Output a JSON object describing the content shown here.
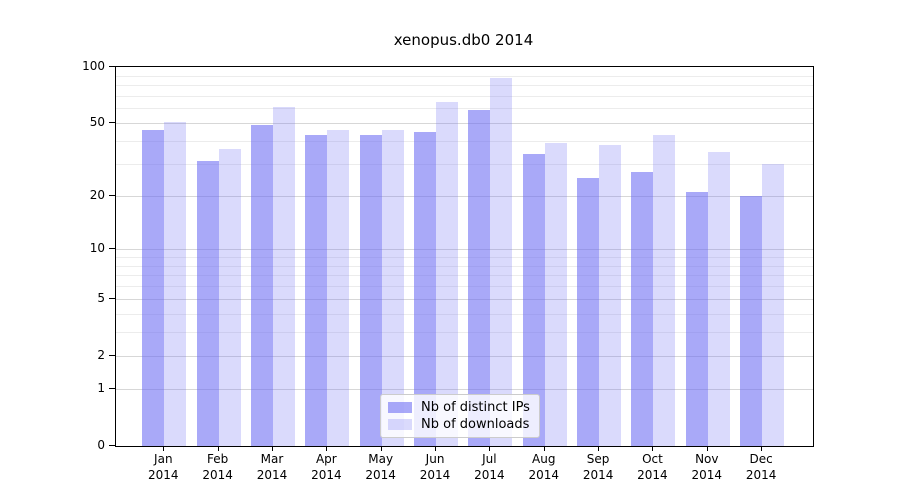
{
  "title": "xenopus.db0 2014",
  "legend": {
    "items": [
      {
        "label": "Nb of distinct IPs",
        "swatch": "dark-purple-swatch"
      },
      {
        "label": "Nb of downloads",
        "swatch": "light-purple-swatch"
      }
    ]
  },
  "colors": {
    "bar_base": "#6b6bf3",
    "bar_dark_rendered": "#a9a9f9",
    "bar_light_rendered": "#dadaf9",
    "major_gridline": "#d7d7d7",
    "minor_gridline": "#ececec",
    "axis": "#000000",
    "legend_border": "#cccccc"
  },
  "y_axis": {
    "tick_labels": [
      "0",
      "1",
      "2",
      "5",
      "10",
      "20",
      "50",
      "100"
    ],
    "ticks": [
      0,
      1,
      2,
      5,
      10,
      20,
      50,
      100
    ],
    "minor_gridlines": [
      3,
      4,
      6,
      7,
      8,
      9,
      30,
      40,
      60,
      70,
      80,
      90
    ],
    "scale": "log1p",
    "max": 100
  },
  "x_axis": {
    "months": [
      "Jan",
      "Feb",
      "Mar",
      "Apr",
      "May",
      "Jun",
      "Jul",
      "Aug",
      "Sep",
      "Oct",
      "Nov",
      "Dec"
    ],
    "year": "2014"
  },
  "chart_data": {
    "type": "bar",
    "title": "xenopus.db0 2014",
    "categories": [
      "Jan 2014",
      "Feb 2014",
      "Mar 2014",
      "Apr 2014",
      "May 2014",
      "Jun 2014",
      "Jul 2014",
      "Aug 2014",
      "Sep 2014",
      "Oct 2014",
      "Nov 2014",
      "Dec 2014"
    ],
    "series": [
      {
        "name": "Nb of distinct IPs",
        "key": "distinct-ips",
        "values": [
          46,
          31,
          49,
          43,
          43,
          45,
          59,
          34,
          25,
          27,
          21,
          20
        ]
      },
      {
        "name": "Nb of downloads",
        "key": "downloads",
        "values": [
          51,
          36,
          61,
          46,
          46,
          65,
          87,
          39,
          38,
          43,
          35,
          30
        ]
      }
    ],
    "ylim": [
      0,
      100
    ],
    "yticks": [
      0,
      1,
      2,
      5,
      10,
      20,
      50,
      100
    ],
    "yscale": "log1p",
    "grid": true,
    "legend_position": "lower center"
  }
}
